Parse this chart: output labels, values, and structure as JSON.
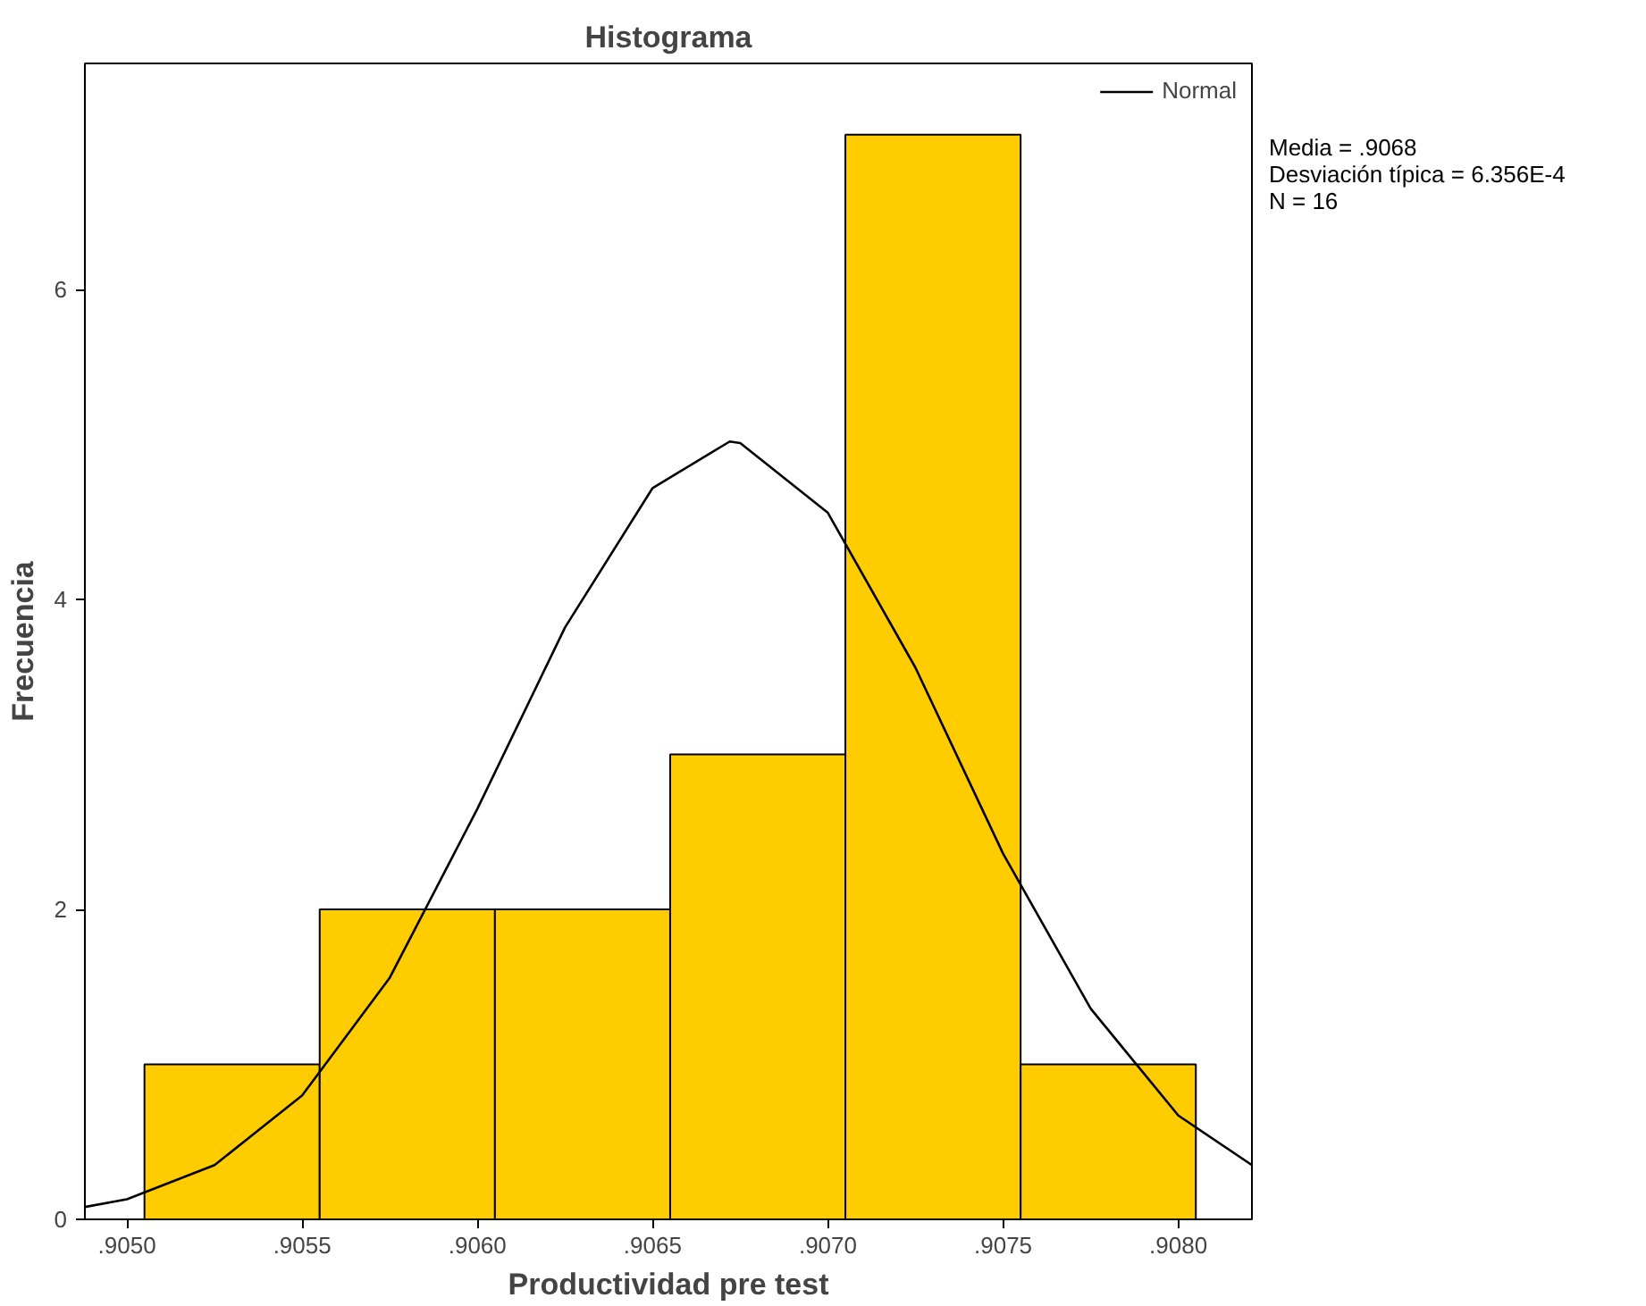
{
  "chart_data": {
    "type": "histogram",
    "title": "Histograma",
    "xlabel": "Productividad pre test",
    "ylabel": "Frecuencia",
    "bins": [
      0.90505,
      0.90555,
      0.90605,
      0.90655,
      0.90705,
      0.90755,
      0.90805
    ],
    "values": [
      1,
      2,
      2,
      3,
      7,
      1
    ],
    "color": "#ffcc00",
    "series": [
      {
        "type": "line",
        "name": "Normal",
        "color": "#000000",
        "x": [
          0.90488,
          0.905,
          0.90525,
          0.9055,
          0.90575,
          0.906,
          0.90625,
          0.9065,
          0.90672,
          0.90675,
          0.907,
          0.90725,
          0.9075,
          0.90775,
          0.908,
          0.90821
        ],
        "values": [
          0.08,
          0.13,
          0.35,
          0.8,
          1.56,
          2.65,
          3.82,
          4.72,
          5.02,
          5.01,
          4.56,
          3.56,
          2.36,
          1.36,
          0.67,
          0.35
        ]
      }
    ],
    "xlim": [
      0.90488,
      0.90821
    ],
    "xticks": [
      {
        "value": 0.905,
        "label": ".9050"
      },
      {
        "value": 0.9055,
        "label": ".9055"
      },
      {
        "value": 0.906,
        "label": ".9060"
      },
      {
        "value": 0.9065,
        "label": ".9065"
      },
      {
        "value": 0.907,
        "label": ".9070"
      },
      {
        "value": 0.9075,
        "label": ".9075"
      },
      {
        "value": 0.908,
        "label": ".9080"
      }
    ],
    "ylim": [
      0,
      7.46
    ],
    "yticks": [
      0,
      2,
      4,
      6
    ],
    "grid": false,
    "legend": "top right",
    "annotations": [
      "Media = .9068",
      "Desviación típica = 6.356E-4",
      "N = 16"
    ]
  }
}
